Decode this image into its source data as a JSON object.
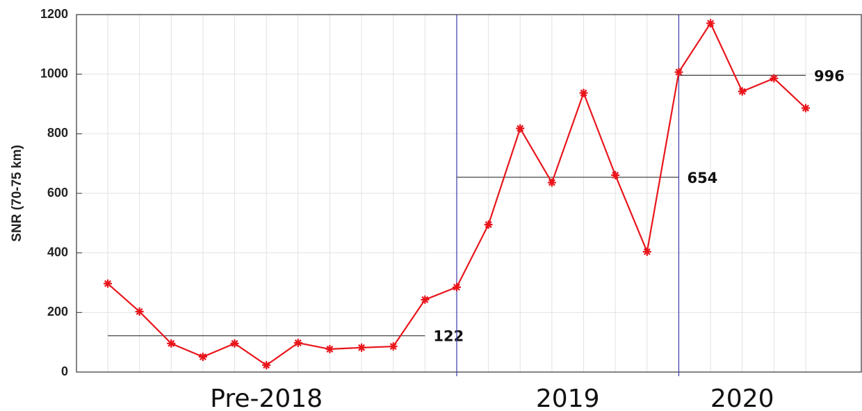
{
  "chart_data": {
    "type": "line",
    "y_label": "SNR (70-75 km)",
    "categories": [
      null,
      null,
      null,
      null,
      null,
      null,
      null,
      null,
      null,
      null,
      null,
      null,
      null,
      null,
      null,
      null,
      null,
      null,
      null,
      null,
      null,
      null,
      null
    ],
    "series": [
      {
        "color": "#e8151b",
        "values": [
          297,
          203,
          96,
          51,
          96,
          23,
          98,
          77,
          82,
          86,
          243,
          285,
          495,
          818,
          636,
          937,
          661,
          404,
          1007,
          1171,
          942,
          986,
          886
        ]
      }
    ],
    "periods": [
      {
        "label": "Pre-2018",
        "mean": 122,
        "start": 0,
        "end": 10
      },
      {
        "label": "2019",
        "mean": 654,
        "start": 11,
        "end": 18
      },
      {
        "label": "2020",
        "mean": 996,
        "start": 18,
        "end": 22
      }
    ],
    "ylim": [
      0,
      1200
    ],
    "yticks": [
      0,
      200,
      400,
      600,
      800,
      1000,
      1200
    ],
    "grid": true
  }
}
